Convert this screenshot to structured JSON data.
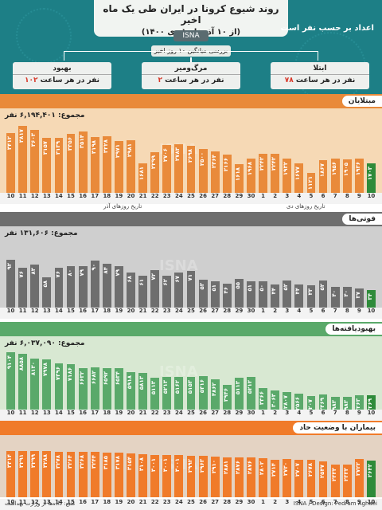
{
  "header": {
    "title": "روند شیوع کرونا در ایران طی یک ماه اخیر",
    "subtitle": "(از ۱۰ آذر تا ۱۰ دی ۱۴۰۰)",
    "agency": "ISNA",
    "basis_note": "اعداد بر حسب نفر است",
    "avg_note": "بررسی میانگین ۱۰ روز اخیر",
    "stats": [
      {
        "label": "ابتلا",
        "value": "۷۸",
        "unit": "نفر در هر ساعت"
      },
      {
        "label": "مرگ‌ومیر",
        "value": "۲",
        "unit": "نفر در هر ساعت"
      },
      {
        "label": "بهبود",
        "value": "۱۰۲",
        "unit": "نفر در هر ساعت"
      }
    ]
  },
  "days": [
    "10",
    "11",
    "12",
    "13",
    "14",
    "15",
    "16",
    "17",
    "18",
    "19",
    "20",
    "21",
    "22",
    "23",
    "24",
    "25",
    "26",
    "27",
    "28",
    "29",
    "30",
    "1",
    "2",
    "3",
    "4",
    "5",
    "6",
    "7",
    "8",
    "9",
    "10"
  ],
  "month_labels": {
    "azar": "تاریخ روزهای آذر",
    "dey": "تاریخ روزهای دی"
  },
  "infected": {
    "name": "مبتلایان",
    "total": "مجموع: ۶,۱۹۴,۴۰۱ نفر",
    "color": "#e98a3a",
    "bg": "#f6d9b5",
    "values": [
      3412,
      3817,
      3603,
      3157,
      3139,
      3356,
      3514,
      3198,
      3228,
      2971,
      2981,
      1681,
      2299,
      2706,
      2783,
      2698,
      2500,
      2364,
      2166,
      1618,
      1968,
      2242,
      2242,
      1932,
      1677,
      1121,
      1867,
      1956,
      1905,
      1936,
      1703
    ]
  },
  "deaths": {
    "name": "فوتی‌ها",
    "total": "مجموع: ۱۳۱,۶۰۶ نفر",
    "color": "#6e6e6e",
    "bg": "#cfcfcf",
    "values": [
      92,
      76,
      83,
      58,
      76,
      80,
      79,
      90,
      84,
      79,
      68,
      61,
      72,
      62,
      67,
      71,
      53,
      51,
      46,
      55,
      51,
      50,
      44,
      52,
      44,
      43,
      52,
      40,
      40,
      37,
      34
    ]
  },
  "recovered": {
    "name": "بهبودیافته‌ها",
    "total": "مجموع: ۶,۰۳۷,۰۹۰ نفر",
    "color": "#5aa96a",
    "bg": "#d8e8d2",
    "values": [
      9104,
      8858,
      8130,
      7978,
      7396,
      7186,
      6632,
      6682,
      6592,
      6534,
      5918,
      5813,
      5113,
      5213,
      5162,
      5153,
      5316,
      4862,
      3946,
      5113,
      5212,
      3366,
      3063,
      2807,
      2566,
      2207,
      2369,
      1983,
      1983,
      2263,
      2269
    ]
  },
  "severe": {
    "name": "بیماران با وضعیت حاد",
    "total": "",
    "color": "#f07b2a",
    "bg": "#e4d3c3",
    "values": [
      3314,
      3291,
      3299,
      3288,
      3278,
      3264,
      3268,
      3244,
      3185,
      3178,
      3154,
      3108,
      3001,
      3001,
      3001,
      2992,
      2963,
      2910,
      2881,
      2876,
      2876,
      2802,
      2714,
      2730,
      2707,
      2678,
      2547,
      2333,
      2333,
      2722,
      2642
    ]
  },
  "footer": {
    "credit": "ISNA / Design: Pedram Aghaei",
    "source": "منبع: داده‌ها از وزارت بهداشت"
  }
}
